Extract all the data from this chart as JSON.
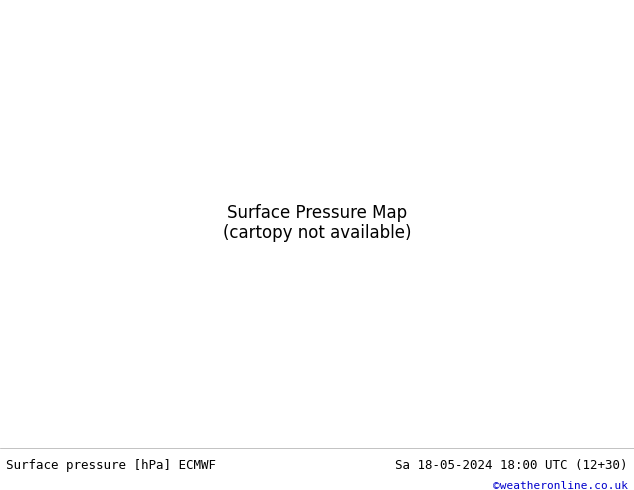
{
  "title_left": "Surface pressure [hPa] ECMWF",
  "title_right": "Sa 18-05-2024 18:00 UTC (12+30)",
  "credit": "©weatheronline.co.uk",
  "bg_color": "#e8e8e8",
  "land_color_green": "#c8e6a0",
  "land_color_dark": "#a0b880",
  "sea_color": "#dcdcdc",
  "contour_black_color": "#000000",
  "contour_blue_color": "#0000cc",
  "contour_red_color": "#cc0000",
  "label_fontsize": 7,
  "footer_fontsize": 9,
  "credit_fontsize": 8,
  "credit_color": "#0000cc",
  "figsize": [
    6.34,
    4.9
  ],
  "dpi": 100
}
